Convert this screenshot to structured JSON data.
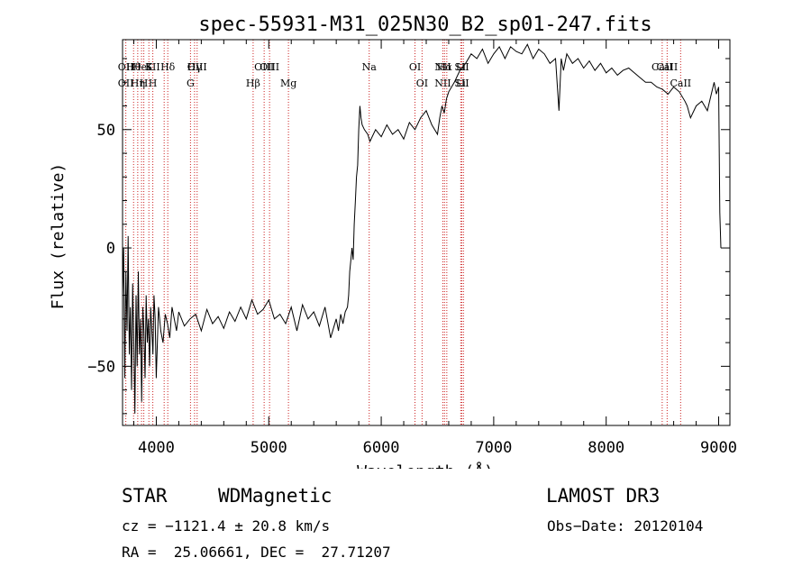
{
  "chart_data": {
    "type": "line",
    "title": "spec-55931-M31_025N30_B2_sp01-247.fits",
    "xlabel": "Wavelength (Å)",
    "ylabel": "Flux (relative)",
    "xlim": [
      3700,
      9100
    ],
    "ylim": [
      -75,
      88
    ],
    "xticks": [
      {
        "v": 4000,
        "label": "4000"
      },
      {
        "v": 5000,
        "label": "5000"
      },
      {
        "v": 6000,
        "label": "6000"
      },
      {
        "v": 7000,
        "label": "7000"
      },
      {
        "v": 8000,
        "label": "8000"
      },
      {
        "v": 9000,
        "label": "9000"
      }
    ],
    "yticks": [
      {
        "v": -50,
        "label": "−50"
      },
      {
        "v": 0,
        "label": "0"
      },
      {
        "v": 50,
        "label": "50"
      }
    ],
    "grid": false,
    "series": [
      {
        "x": [
          3700,
          3710,
          3720,
          3730,
          3740,
          3750,
          3760,
          3770,
          3780,
          3790,
          3800,
          3810,
          3820,
          3830,
          3840,
          3850,
          3860,
          3870,
          3880,
          3890,
          3900,
          3910,
          3920,
          3930,
          3940,
          3950,
          3960,
          3970,
          3980,
          3990,
          4000,
          4020,
          4040,
          4060,
          4080,
          4100,
          4120,
          4140,
          4160,
          4180,
          4200,
          4250,
          4300,
          4350,
          4400,
          4450,
          4500,
          4550,
          4600,
          4650,
          4700,
          4750,
          4800,
          4850,
          4900,
          4950,
          5000,
          5050,
          5100,
          5150,
          5200,
          5250,
          5300,
          5350,
          5400,
          5450,
          5500,
          5550,
          5600,
          5620,
          5640,
          5660,
          5680,
          5700,
          5710,
          5720,
          5730,
          5740,
          5750,
          5760,
          5770,
          5780,
          5790,
          5800,
          5810,
          5820,
          5830,
          5850,
          5880,
          5900,
          5950,
          6000,
          6050,
          6100,
          6150,
          6200,
          6250,
          6300,
          6350,
          6400,
          6450,
          6500,
          6520,
          6540,
          6560,
          6580,
          6600,
          6650,
          6700,
          6750,
          6800,
          6850,
          6900,
          6950,
          7000,
          7050,
          7100,
          7150,
          7200,
          7250,
          7300,
          7350,
          7400,
          7450,
          7500,
          7550,
          7580,
          7600,
          7620,
          7650,
          7700,
          7750,
          7800,
          7850,
          7900,
          7950,
          8000,
          8050,
          8100,
          8150,
          8200,
          8250,
          8300,
          8350,
          8400,
          8450,
          8500,
          8550,
          8600,
          8650,
          8700,
          8720,
          8750,
          8800,
          8850,
          8900,
          8940,
          8960,
          8980,
          9000,
          9010,
          9020
        ],
        "y": [
          -20,
          0,
          -55,
          -10,
          -35,
          5,
          -45,
          -25,
          -60,
          -15,
          -40,
          -70,
          -20,
          -50,
          -10,
          -45,
          -30,
          -65,
          -25,
          -35,
          -55,
          -20,
          -40,
          -30,
          -50,
          -25,
          -35,
          -45,
          -20,
          -30,
          -55,
          -25,
          -35,
          -40,
          -28,
          -32,
          -38,
          -25,
          -30,
          -35,
          -27,
          -33,
          -30,
          -28,
          -35,
          -26,
          -32,
          -29,
          -34,
          -27,
          -31,
          -25,
          -30,
          -22,
          -28,
          -26,
          -22,
          -30,
          -28,
          -32,
          -25,
          -35,
          -24,
          -30,
          -27,
          -33,
          -25,
          -38,
          -30,
          -35,
          -28,
          -32,
          -27,
          -25,
          -20,
          -10,
          -5,
          0,
          -5,
          10,
          20,
          30,
          35,
          50,
          60,
          55,
          52,
          50,
          48,
          45,
          50,
          47,
          52,
          48,
          50,
          46,
          53,
          50,
          55,
          58,
          52,
          48,
          55,
          60,
          57,
          63,
          66,
          70,
          75,
          78,
          82,
          80,
          84,
          78,
          82,
          85,
          80,
          85,
          83,
          82,
          86,
          80,
          84,
          82,
          78,
          80,
          58,
          80,
          75,
          82,
          78,
          80,
          76,
          79,
          75,
          78,
          74,
          76,
          73,
          75,
          76,
          74,
          72,
          70,
          70,
          68,
          67,
          65,
          68,
          66,
          62,
          60,
          55,
          60,
          62,
          58,
          66,
          70,
          65,
          68,
          15,
          0
        ]
      }
    ],
    "lines": [
      {
        "x": 3729,
        "t1": "OII",
        "t2": "OII"
      },
      {
        "x": 3798,
        "t1": "Hθ"
      },
      {
        "x": 3835,
        "t2": "Hη"
      },
      {
        "x": 3869,
        "t1": "HeI"
      },
      {
        "x": 3889,
        "t2": "H"
      },
      {
        "x": 3934,
        "t1": "K"
      },
      {
        "x": 3969,
        "t1": "SII",
        "t2": "H"
      },
      {
        "x": 4070
      },
      {
        "x": 4102,
        "t1": "Hδ"
      },
      {
        "x": 4304,
        "t2": "G"
      },
      {
        "x": 4340,
        "t1": "Hγ"
      },
      {
        "x": 4363,
        "t1": "OIII"
      },
      {
        "x": 4861,
        "t2": "Hβ"
      },
      {
        "x": 4959,
        "t1": "OIII"
      },
      {
        "x": 5007,
        "t1": "OIII"
      },
      {
        "x": 5175,
        "t2": "Mg"
      },
      {
        "x": 5893,
        "t1": "Na"
      },
      {
        "x": 6300,
        "t1": "OI"
      },
      {
        "x": 6363,
        "t2": "OI"
      },
      {
        "x": 6548,
        "t1": "NII",
        "t2": "NII"
      },
      {
        "x": 6563,
        "t1": "Hα"
      },
      {
        "x": 6583
      },
      {
        "x": 6707,
        "t1": "Li",
        "t2": "Li"
      },
      {
        "x": 6716,
        "t1": "SII",
        "t2": "SII"
      },
      {
        "x": 6731
      },
      {
        "x": 8498,
        "t1": "CaII"
      },
      {
        "x": 8542,
        "t1": "CaII"
      },
      {
        "x": 8662,
        "t2": "CaII"
      }
    ]
  },
  "info": {
    "class": "STAR",
    "subclass": "WDMagnetic",
    "survey": "LAMOST DR3",
    "cz": "cz = −1121.4 ± 20.8 km/s",
    "obs_date": "Obs−Date: 20120104",
    "radec": "RA =  25.06661, DEC =  27.71207"
  }
}
